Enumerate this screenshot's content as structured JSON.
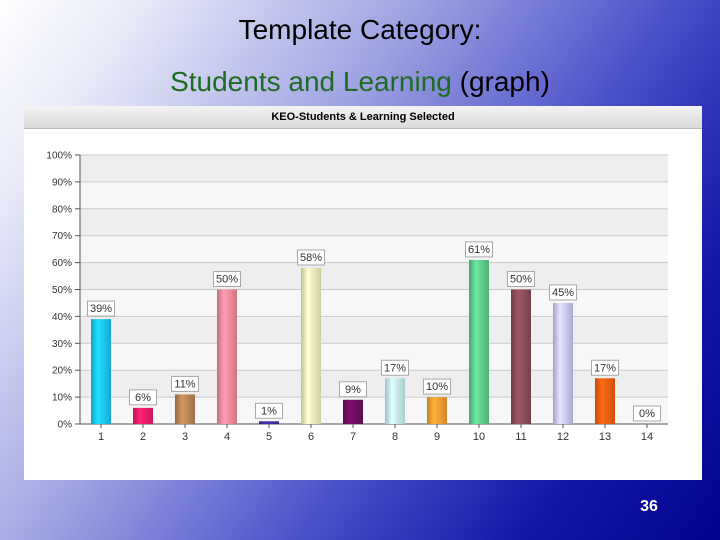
{
  "slide": {
    "title": "Template Category:",
    "subtitle_colored": "Students and Learning",
    "subtitle_rest": "(graph)",
    "page_number": "36"
  },
  "colors": {
    "subtitle_green": "#1e6b22",
    "background_dark": "#03038f"
  },
  "chart_data": {
    "type": "bar",
    "title": "KEO-Students & Learning Selected",
    "xlabel": "",
    "ylabel": "",
    "categories": [
      "1",
      "2",
      "3",
      "4",
      "5",
      "6",
      "7",
      "8",
      "9",
      "10",
      "11",
      "12",
      "13",
      "14"
    ],
    "values": [
      39,
      6,
      11,
      50,
      1,
      58,
      9,
      17,
      10,
      61,
      50,
      45,
      17,
      0
    ],
    "value_labels": [
      "39%",
      "6%",
      "11%",
      "50%",
      "1%",
      "58%",
      "9%",
      "17%",
      "10%",
      "61%",
      "50%",
      "45%",
      "17%",
      "0%"
    ],
    "bar_colors": [
      "#19c6f5",
      "#f01d69",
      "#b78554",
      "#f7899a",
      "#3c2b9b",
      "#f3f1b8",
      "#6e0f5e",
      "#c3f2f6",
      "#f99b32",
      "#5ecb8b",
      "#8a4c58",
      "#c8c8f6",
      "#f75d10",
      "#dddddd"
    ],
    "ylim": [
      0,
      100
    ],
    "yticks": [
      "0%",
      "10%",
      "20%",
      "30%",
      "40%",
      "50%",
      "60%",
      "70%",
      "80%",
      "90%",
      "100%"
    ],
    "grid": true,
    "legend": "none"
  }
}
